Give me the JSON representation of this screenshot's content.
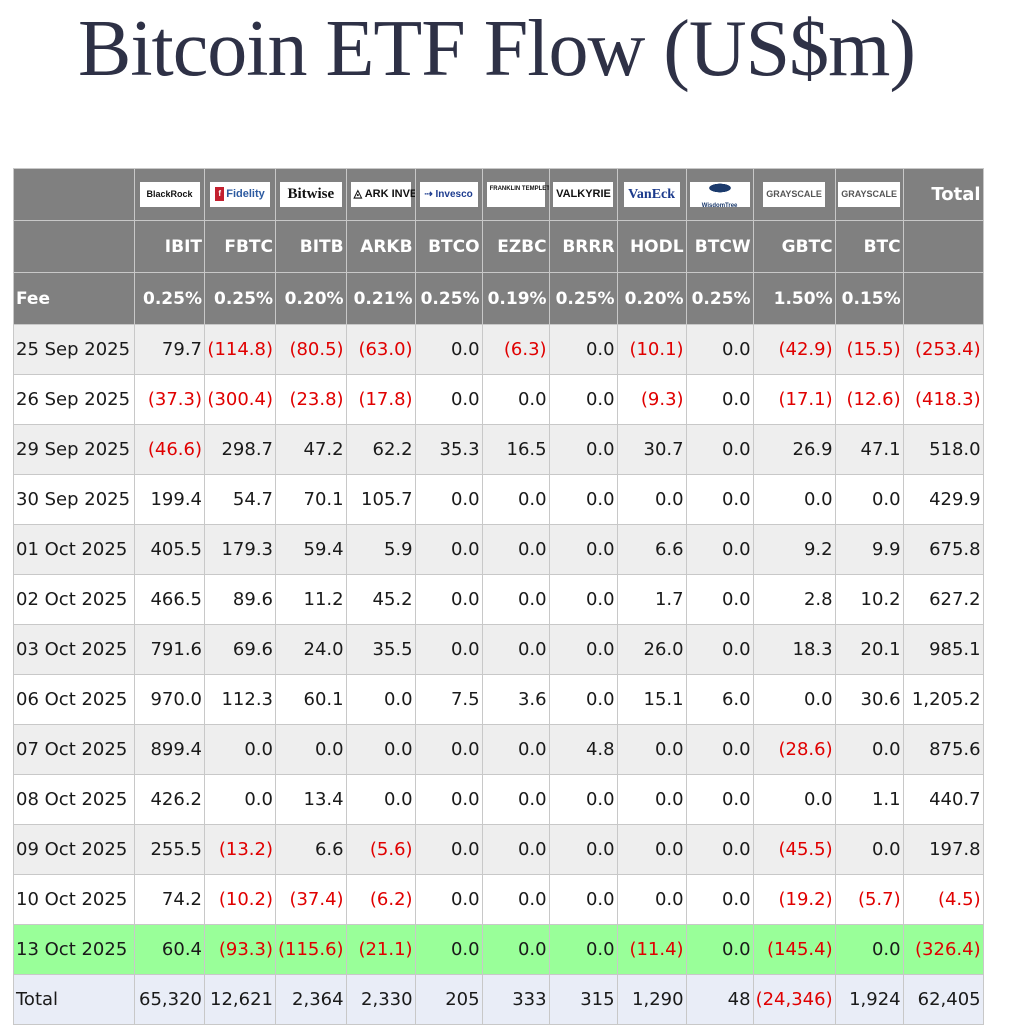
{
  "title": "Bitcoin ETF Flow (US$m)",
  "issuers": [
    "BlackRock",
    "Fidelity",
    "Bitwise",
    "ARK INVEST",
    "Invesco",
    "FRANKLIN TEMPLETON",
    "VALKYRIE",
    "VanEck",
    "WisdomTree",
    "GRAYSCALE",
    "GRAYSCALE"
  ],
  "total_header": "Total",
  "tickers": [
    "IBIT",
    "FBTC",
    "BITB",
    "ARKB",
    "BTCO",
    "EZBC",
    "BRRR",
    "HODL",
    "BTCW",
    "GBTC",
    "BTC"
  ],
  "fee_label": "Fee",
  "fees": [
    "0.25%",
    "0.25%",
    "0.20%",
    "0.21%",
    "0.25%",
    "0.19%",
    "0.25%",
    "0.20%",
    "0.25%",
    "1.50%",
    "0.15%"
  ],
  "rows": [
    {
      "date": "25 Sep 2025",
      "values": [
        "79.7",
        "(114.8)",
        "(80.5)",
        "(63.0)",
        "0.0",
        "(6.3)",
        "0.0",
        "(10.1)",
        "0.0",
        "(42.9)",
        "(15.5)",
        "(253.4)"
      ]
    },
    {
      "date": "26 Sep 2025",
      "values": [
        "(37.3)",
        "(300.4)",
        "(23.8)",
        "(17.8)",
        "0.0",
        "0.0",
        "0.0",
        "(9.3)",
        "0.0",
        "(17.1)",
        "(12.6)",
        "(418.3)"
      ]
    },
    {
      "date": "29 Sep 2025",
      "values": [
        "(46.6)",
        "298.7",
        "47.2",
        "62.2",
        "35.3",
        "16.5",
        "0.0",
        "30.7",
        "0.0",
        "26.9",
        "47.1",
        "518.0"
      ]
    },
    {
      "date": "30 Sep 2025",
      "values": [
        "199.4",
        "54.7",
        "70.1",
        "105.7",
        "0.0",
        "0.0",
        "0.0",
        "0.0",
        "0.0",
        "0.0",
        "0.0",
        "429.9"
      ]
    },
    {
      "date": "01 Oct 2025",
      "values": [
        "405.5",
        "179.3",
        "59.4",
        "5.9",
        "0.0",
        "0.0",
        "0.0",
        "6.6",
        "0.0",
        "9.2",
        "9.9",
        "675.8"
      ]
    },
    {
      "date": "02 Oct 2025",
      "values": [
        "466.5",
        "89.6",
        "11.2",
        "45.2",
        "0.0",
        "0.0",
        "0.0",
        "1.7",
        "0.0",
        "2.8",
        "10.2",
        "627.2"
      ]
    },
    {
      "date": "03 Oct 2025",
      "values": [
        "791.6",
        "69.6",
        "24.0",
        "35.5",
        "0.0",
        "0.0",
        "0.0",
        "26.0",
        "0.0",
        "18.3",
        "20.1",
        "985.1"
      ]
    },
    {
      "date": "06 Oct 2025",
      "values": [
        "970.0",
        "112.3",
        "60.1",
        "0.0",
        "7.5",
        "3.6",
        "0.0",
        "15.1",
        "6.0",
        "0.0",
        "30.6",
        "1,205.2"
      ]
    },
    {
      "date": "07 Oct 2025",
      "values": [
        "899.4",
        "0.0",
        "0.0",
        "0.0",
        "0.0",
        "0.0",
        "4.8",
        "0.0",
        "0.0",
        "(28.6)",
        "0.0",
        "875.6"
      ]
    },
    {
      "date": "08 Oct 2025",
      "values": [
        "426.2",
        "0.0",
        "13.4",
        "0.0",
        "0.0",
        "0.0",
        "0.0",
        "0.0",
        "0.0",
        "0.0",
        "1.1",
        "440.7"
      ]
    },
    {
      "date": "09 Oct 2025",
      "values": [
        "255.5",
        "(13.2)",
        "6.6",
        "(5.6)",
        "0.0",
        "0.0",
        "0.0",
        "0.0",
        "0.0",
        "(45.5)",
        "0.0",
        "197.8"
      ]
    },
    {
      "date": "10 Oct 2025",
      "values": [
        "74.2",
        "(10.2)",
        "(37.4)",
        "(6.2)",
        "0.0",
        "0.0",
        "0.0",
        "0.0",
        "0.0",
        "(19.2)",
        "(5.7)",
        "(4.5)"
      ]
    },
    {
      "date": "13 Oct 2025",
      "values": [
        "60.4",
        "(93.3)",
        "(115.6)",
        "(21.1)",
        "0.0",
        "0.0",
        "0.0",
        "(11.4)",
        "0.0",
        "(145.4)",
        "0.0",
        "(326.4)"
      ],
      "highlight": true
    }
  ],
  "total_row": {
    "label": "Total",
    "values": [
      "65,320",
      "12,621",
      "2,364",
      "2,330",
      "205",
      "333",
      "315",
      "1,290",
      "48",
      "(24,346)",
      "1,924",
      "62,405"
    ]
  },
  "colors": {
    "header_bg": "#808080",
    "negative": "#e00000",
    "highlight": "#99ff99",
    "stripe": "#eeeeee",
    "total_bg": "#e9edf7"
  }
}
